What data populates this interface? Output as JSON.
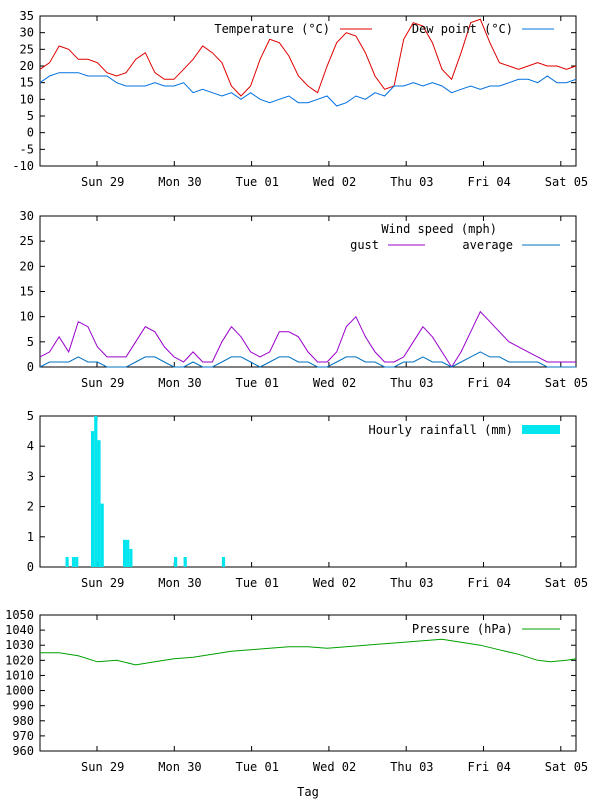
{
  "chart_data": [
    {
      "type": "line",
      "ylim": [
        -10,
        35
      ],
      "yticks": [
        -10,
        -5,
        0,
        5,
        10,
        15,
        20,
        25,
        30,
        35
      ],
      "x_labels": [
        "Sun 29",
        "Mon 30",
        "Tue 01",
        "Wed 02",
        "Thu 03",
        "Fri 04",
        "Sat 05"
      ],
      "legend_position": "top-right",
      "x": [
        0,
        3,
        6,
        9,
        12,
        15,
        18,
        21,
        24,
        27,
        30,
        33,
        36,
        39,
        42,
        45,
        48,
        51,
        54,
        57,
        60,
        63,
        66,
        69,
        72,
        75,
        78,
        81,
        84,
        87,
        90,
        93,
        96,
        99,
        102,
        105,
        108,
        111,
        114,
        117,
        120,
        123,
        126,
        129,
        132,
        135,
        138,
        141,
        144,
        147,
        150,
        153,
        156,
        159,
        162,
        165,
        168
      ],
      "series": [
        {
          "name": "Temperature (°C)",
          "color": "#e00000",
          "values": [
            19,
            21,
            26,
            25,
            22,
            22,
            21,
            18,
            17,
            18,
            22,
            24,
            18,
            16,
            16,
            19,
            22,
            26,
            24,
            21,
            14,
            11,
            14,
            22,
            28,
            27,
            23,
            17,
            14,
            12,
            20,
            27,
            30,
            29,
            24,
            17,
            13,
            14,
            28,
            33,
            32,
            27,
            19,
            16,
            24,
            33,
            34,
            27,
            21,
            20,
            19,
            20,
            21,
            20,
            20,
            19,
            20
          ]
        },
        {
          "name": "Dew point (°C)",
          "color": "#0070e0",
          "values": [
            15,
            17,
            18,
            18,
            18,
            17,
            17,
            17,
            15,
            14,
            14,
            14,
            15,
            14,
            14,
            15,
            12,
            13,
            12,
            11,
            12,
            10,
            12,
            10,
            9,
            10,
            11,
            9,
            9,
            10,
            11,
            8,
            9,
            11,
            10,
            12,
            11,
            14,
            14,
            15,
            14,
            15,
            14,
            12,
            13,
            14,
            13,
            14,
            14,
            15,
            16,
            16,
            15,
            17,
            15,
            15,
            16
          ]
        }
      ]
    },
    {
      "type": "line",
      "ylim": [
        0,
        30
      ],
      "yticks": [
        0,
        5,
        10,
        15,
        20,
        25,
        30
      ],
      "x_labels": [
        "Sun 29",
        "Mon 30",
        "Tue 01",
        "Wed 02",
        "Thu 03",
        "Fri 04",
        "Sat 05"
      ],
      "title": "Wind speed (mph)",
      "legend_position": "top-right",
      "x": [
        0,
        3,
        6,
        9,
        12,
        15,
        18,
        21,
        24,
        27,
        30,
        33,
        36,
        39,
        42,
        45,
        48,
        51,
        54,
        57,
        60,
        63,
        66,
        69,
        72,
        75,
        78,
        81,
        84,
        87,
        90,
        93,
        96,
        99,
        102,
        105,
        108,
        111,
        114,
        117,
        120,
        123,
        126,
        129,
        132,
        135,
        138,
        141,
        144,
        147,
        150,
        153,
        156,
        159,
        162,
        165,
        168
      ],
      "series": [
        {
          "name": "gust",
          "color": "#9900cc",
          "values": [
            2,
            3,
            6,
            3,
            9,
            8,
            4,
            2,
            2,
            2,
            5,
            8,
            7,
            4,
            2,
            1,
            3,
            1,
            1,
            5,
            8,
            6,
            3,
            2,
            3,
            7,
            7,
            6,
            3,
            1,
            1,
            3,
            8,
            10,
            6,
            3,
            1,
            1,
            2,
            5,
            8,
            6,
            3,
            0,
            3,
            7,
            11,
            9,
            7,
            5,
            4,
            3,
            2,
            1,
            1,
            1,
            1
          ]
        },
        {
          "name": "average",
          "color": "#0070c0",
          "values": [
            0,
            1,
            1,
            1,
            2,
            1,
            1,
            0,
            0,
            0,
            1,
            2,
            2,
            1,
            0,
            0,
            1,
            0,
            0,
            1,
            2,
            2,
            1,
            0,
            1,
            2,
            2,
            1,
            1,
            0,
            0,
            1,
            2,
            2,
            1,
            1,
            0,
            0,
            1,
            1,
            2,
            1,
            1,
            0,
            1,
            2,
            3,
            2,
            2,
            1,
            1,
            1,
            1,
            0,
            0,
            0,
            0
          ]
        }
      ]
    },
    {
      "type": "bar",
      "ylim": [
        0,
        5
      ],
      "yticks": [
        0,
        1,
        2,
        3,
        4,
        5
      ],
      "x_labels": [
        "Sun 29",
        "Mon 30",
        "Tue 01",
        "Wed 02",
        "Thu 03",
        "Fri 04",
        "Sat 05"
      ],
      "legend_position": "top-right",
      "series": [
        {
          "name": "Hourly rainfall (mm)",
          "color": "#00e5ee",
          "x": [
            8,
            10,
            11,
            16,
            17,
            18,
            19,
            26,
            27,
            28,
            42,
            45,
            57
          ],
          "values": [
            0.33,
            0.33,
            0.33,
            4.5,
            5.0,
            4.2,
            2.1,
            0.9,
            0.9,
            0.6,
            0.33,
            0.33,
            0.33
          ]
        }
      ]
    },
    {
      "type": "line",
      "ylim": [
        960,
        1050
      ],
      "yticks": [
        960,
        970,
        980,
        990,
        1000,
        1010,
        1020,
        1030,
        1040,
        1050
      ],
      "x_labels": [
        "Sun 29",
        "Mon 30",
        "Tue 01",
        "Wed 02",
        "Thu 03",
        "Fri 04",
        "Sat 05"
      ],
      "xlabel": "Tag",
      "legend_position": "top-right",
      "x": [
        0,
        6,
        12,
        18,
        24,
        30,
        36,
        42,
        48,
        54,
        60,
        66,
        72,
        78,
        84,
        90,
        96,
        102,
        108,
        114,
        120,
        126,
        132,
        138,
        144,
        150,
        156,
        160,
        165,
        168
      ],
      "series": [
        {
          "name": "Pressure (hPa)",
          "color": "#00a000",
          "values": [
            1025,
            1025,
            1023,
            1019,
            1020,
            1017,
            1019,
            1021,
            1022,
            1024,
            1026,
            1027,
            1028,
            1029,
            1029,
            1028,
            1029,
            1030,
            1031,
            1032,
            1033,
            1034,
            1032,
            1030,
            1027,
            1024,
            1020,
            1019,
            1020,
            1021
          ]
        }
      ]
    }
  ]
}
